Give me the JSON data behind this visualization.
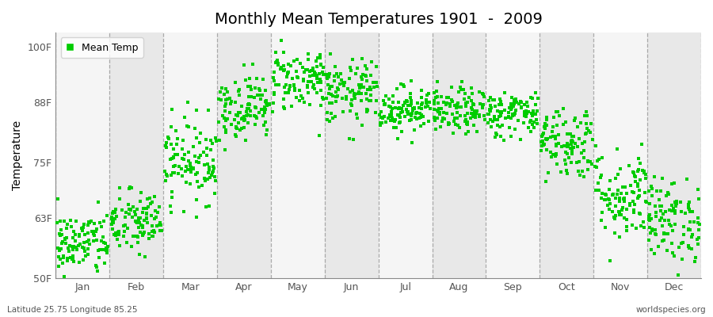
{
  "title": "Monthly Mean Temperatures 1901  -  2009",
  "ylabel": "Temperature",
  "xlabel_bottom_left": "Latitude 25.75 Longitude 85.25",
  "xlabel_bottom_right": "worldspecies.org",
  "legend_label": "Mean Temp",
  "dot_color": "#00cc00",
  "plot_bg_color": "#f0f0f0",
  "fig_bg_color": "#ffffff",
  "ylim": [
    50,
    103
  ],
  "yticks": [
    50,
    63,
    75,
    88,
    100
  ],
  "ytick_labels": [
    "50F",
    "63F",
    "75F",
    "88F",
    "100F"
  ],
  "months": [
    "Jan",
    "Feb",
    "Mar",
    "Apr",
    "May",
    "Jun",
    "Jul",
    "Aug",
    "Sep",
    "Oct",
    "Nov",
    "Dec"
  ],
  "n_years": 109,
  "mean_temps_F": [
    57.5,
    62.0,
    75.5,
    87.0,
    93.0,
    90.0,
    86.5,
    86.0,
    85.5,
    79.5,
    68.0,
    62.5
  ],
  "spread_std": [
    3.5,
    3.5,
    4.5,
    3.5,
    3.5,
    3.5,
    2.5,
    2.5,
    2.5,
    4.0,
    5.0,
    4.5
  ],
  "seed": 42
}
